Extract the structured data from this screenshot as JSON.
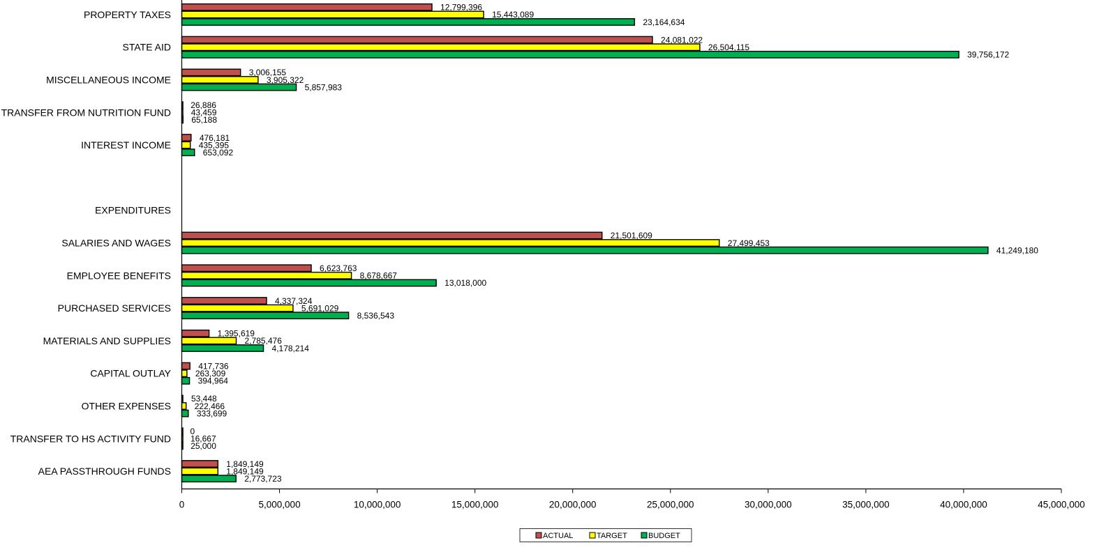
{
  "chart_data": {
    "type": "bar",
    "orientation": "horizontal",
    "title": "",
    "xlabel": "",
    "ylabel": "",
    "xlim": [
      0,
      45000000
    ],
    "x_ticks": [
      "0",
      "5,000,000",
      "10,000,000",
      "15,000,000",
      "20,000,000",
      "25,000,000",
      "30,000,000",
      "35,000,000",
      "40,000,000",
      "45,000,000"
    ],
    "grid": false,
    "legend_position": "bottom",
    "categories": [
      "PROPERTY TAXES",
      "STATE AID",
      "MISCELLANEOUS INCOME",
      "TRANSFER FROM NUTRITION FUND",
      "INTEREST INCOME",
      "",
      "EXPENDITURES",
      "SALARIES AND WAGES",
      "EMPLOYEE BENEFITS",
      "PURCHASED SERVICES",
      "MATERIALS AND SUPPLIES",
      "CAPITAL OUTLAY",
      "OTHER EXPENSES",
      "TRANSFER TO HS ACTIVITY FUND",
      "AEA PASSTHROUGH FUNDS"
    ],
    "series": [
      {
        "name": "ACTUAL",
        "color": "#c0504d",
        "values": [
          12799396,
          24081022,
          3006155,
          26886,
          476181,
          null,
          null,
          21501609,
          6623763,
          4337324,
          1395619,
          417736,
          53448,
          0,
          1849149
        ],
        "labels": [
          "12,799,396",
          "24,081,022",
          "3,006,155",
          "26,886",
          "476,181",
          "",
          "",
          "21,501,609",
          "6,623,763",
          "4,337,324",
          "1,395,619",
          "417,736",
          "53,448",
          "0",
          "1,849,149"
        ]
      },
      {
        "name": "TARGET",
        "color": "#ffff00",
        "values": [
          15443089,
          26504115,
          3905322,
          43459,
          435395,
          null,
          null,
          27499453,
          8678667,
          5691029,
          2785476,
          263309,
          222466,
          16667,
          1849149
        ],
        "labels": [
          "15,443,089",
          "26,504,115",
          "3,905,322",
          "43,459",
          "435,395",
          "",
          "",
          "27,499,453",
          "8,678,667",
          "5,691,029",
          "2,785,476",
          "263,309",
          "222,466",
          "16,667",
          "1,849,149"
        ]
      },
      {
        "name": "BUDGET",
        "color": "#00b050",
        "values": [
          23164634,
          39756172,
          5857983,
          65188,
          653092,
          null,
          null,
          41249180,
          13018000,
          8536543,
          4178214,
          394964,
          333699,
          25000,
          2773723
        ],
        "labels": [
          "23,164,634",
          "39,756,172",
          "5,857,983",
          "65,188",
          "653,092",
          "",
          "",
          "41,249,180",
          "13,018,000",
          "8,536,543",
          "4,178,214",
          "394,964",
          "333,699",
          "25,000",
          "2,773,723"
        ]
      }
    ]
  }
}
